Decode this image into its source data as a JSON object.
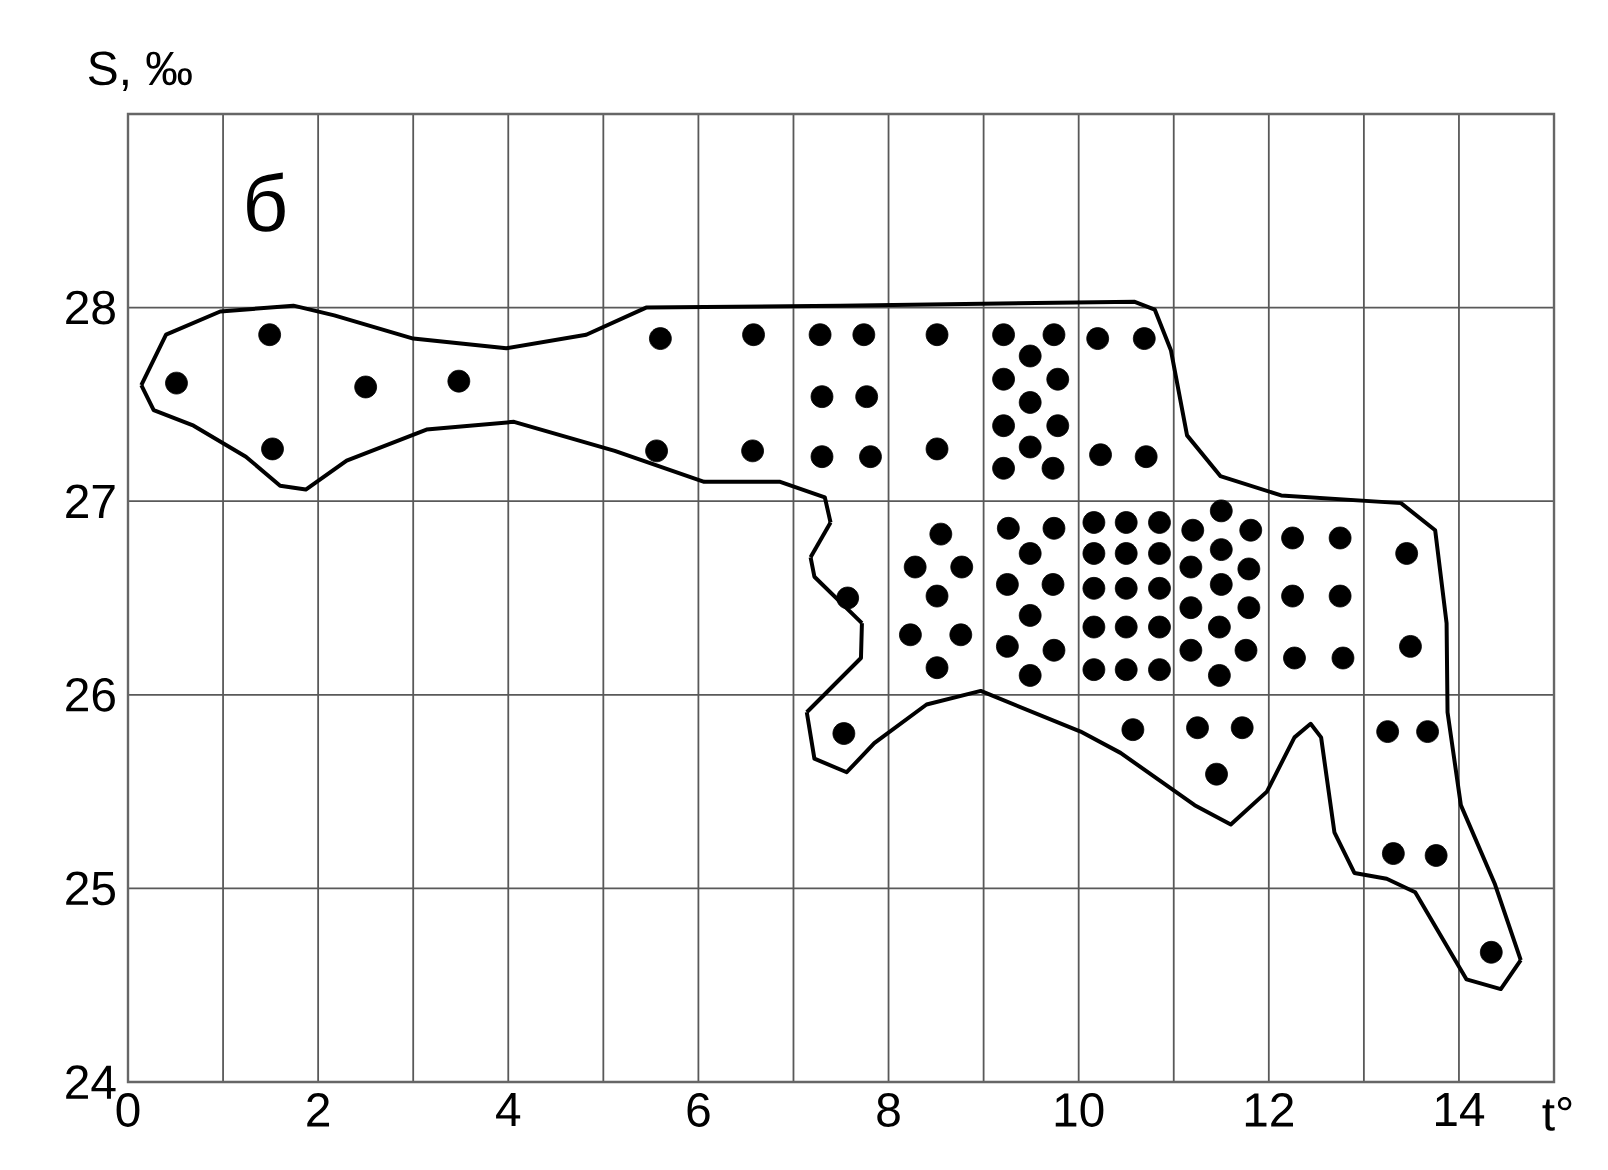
{
  "chart_data": {
    "type": "scatter",
    "xlabel": "t°",
    "ylabel": "S, ‰",
    "annotations": [
      "б"
    ],
    "xlim": [
      0,
      15
    ],
    "ylim": [
      24,
      29
    ],
    "xticks": [
      0,
      {
        "value": 1,
        "label": null
      },
      2,
      {
        "value": 3,
        "label": null
      },
      4,
      {
        "value": 5,
        "label": null
      },
      6,
      {
        "value": 7,
        "label": null
      },
      8,
      {
        "value": 9,
        "label": null
      },
      10,
      {
        "value": 11,
        "label": null
      },
      12,
      {
        "value": 13,
        "label": null
      },
      14,
      {
        "value": 15,
        "label": null
      }
    ],
    "yticks": [
      24,
      25,
      26,
      27,
      28,
      {
        "value": 29,
        "label": null
      }
    ],
    "grid": true,
    "series": [
      {
        "type": "line",
        "marker": "none",
        "color": "#000000",
        "x": [
          0.14,
          0.4,
          0.97,
          1.74,
          2.17,
          3.0,
          3.98,
          4.82,
          5.45,
          7.49,
          10.59,
          10.8,
          10.97,
          11.14,
          11.49,
          12.13,
          13.39,
          13.75,
          13.87,
          13.88,
          14.02,
          14.38,
          14.65
        ],
        "values": [
          27.6,
          27.86,
          27.98,
          28.01,
          27.96,
          27.84,
          27.79,
          27.86,
          28.0,
          28.01,
          28.03,
          27.99,
          27.78,
          27.34,
          27.13,
          27.03,
          26.99,
          26.85,
          26.37,
          25.91,
          25.43,
          25.02,
          24.63
        ]
      },
      {
        "type": "line",
        "marker": "none",
        "color": "#000000",
        "x": [
          14.65,
          14.44,
          14.08,
          13.54,
          13.24,
          12.9,
          12.69,
          12.55,
          12.44,
          12.27,
          11.98,
          11.6,
          11.22,
          10.44,
          10.02,
          8.97,
          8.4,
          7.85,
          7.56,
          7.22,
          7.14
        ],
        "values": [
          24.63,
          24.48,
          24.53,
          24.98,
          25.05,
          25.08,
          25.29,
          25.78,
          25.85,
          25.78,
          25.5,
          25.33,
          25.43,
          25.7,
          25.81,
          26.02,
          25.95,
          25.75,
          25.6,
          25.67,
          25.91
        ]
      },
      {
        "type": "line",
        "marker": "none",
        "color": "#000000",
        "x": [
          7.14,
          7.71,
          7.72
        ],
        "values": [
          25.91,
          26.19,
          26.37
        ]
      },
      {
        "type": "line",
        "marker": "none",
        "color": "#000000",
        "x": [
          7.72,
          7.22,
          7.18
        ],
        "values": [
          26.37,
          26.61,
          26.71
        ]
      },
      {
        "type": "line",
        "marker": "none",
        "color": "#000000",
        "x": [
          7.18,
          7.39
        ],
        "values": [
          26.71,
          26.89
        ]
      },
      {
        "type": "line",
        "marker": "none",
        "color": "#000000",
        "x": [
          7.39,
          7.33,
          6.86,
          6.06,
          5.12,
          4.06,
          3.14,
          2.3,
          1.87,
          1.6,
          1.24,
          0.69,
          0.27,
          0.14
        ],
        "values": [
          26.89,
          27.02,
          27.1,
          27.1,
          27.26,
          27.41,
          27.37,
          27.21,
          27.06,
          27.08,
          27.23,
          27.39,
          27.47,
          27.6
        ]
      },
      {
        "color": "#000000",
        "marker": "circle",
        "x": [
          0.51,
          1.49,
          1.52,
          2.5,
          3.48,
          5.6,
          5.56,
          6.58,
          6.57,
          7.28,
          7.74,
          8.51,
          7.3,
          7.77,
          7.3,
          7.81,
          8.51,
          9.21,
          9.74,
          9.49,
          9.21,
          9.78,
          9.49,
          9.21,
          9.78,
          9.49,
          9.21,
          9.73,
          10.2,
          10.69,
          10.23,
          10.71,
          7.57,
          7.53,
          8.55,
          8.28,
          8.77,
          8.51,
          8.23,
          8.76,
          8.51,
          9.26,
          9.74,
          9.49,
          9.25,
          9.73,
          9.49,
          9.25,
          9.74,
          9.49,
          10.16,
          10.5,
          10.85,
          10.16,
          10.5,
          10.85,
          10.16,
          10.5,
          10.85,
          10.16,
          10.5,
          10.85,
          10.16,
          10.5,
          10.85,
          11.5,
          11.2,
          11.81,
          11.5,
          11.18,
          11.79,
          11.5,
          11.18,
          11.79,
          11.48,
          11.18,
          11.76,
          11.48,
          10.57,
          11.25,
          11.72,
          11.45,
          12.25,
          12.75,
          12.25,
          12.75,
          12.27,
          12.78,
          13.45,
          13.49,
          13.25,
          13.67,
          13.31,
          13.76,
          14.34
        ],
        "values": [
          27.61,
          27.86,
          27.27,
          27.59,
          27.62,
          27.84,
          27.26,
          27.86,
          27.26,
          27.86,
          27.86,
          27.86,
          27.54,
          27.54,
          27.23,
          27.23,
          27.27,
          27.86,
          27.86,
          27.75,
          27.63,
          27.63,
          27.51,
          27.39,
          27.39,
          27.28,
          27.17,
          27.17,
          27.84,
          27.84,
          27.24,
          27.23,
          26.5,
          25.8,
          26.83,
          26.66,
          26.66,
          26.51,
          26.31,
          26.31,
          26.14,
          26.86,
          26.86,
          26.73,
          26.57,
          26.57,
          26.41,
          26.25,
          26.23,
          26.1,
          26.89,
          26.89,
          26.89,
          26.73,
          26.73,
          26.73,
          26.55,
          26.55,
          26.55,
          26.35,
          26.35,
          26.35,
          26.13,
          26.13,
          26.13,
          26.95,
          26.85,
          26.85,
          26.75,
          26.66,
          26.65,
          26.57,
          26.45,
          26.45,
          26.35,
          26.23,
          26.23,
          26.1,
          25.82,
          25.83,
          25.83,
          25.59,
          26.81,
          26.81,
          26.51,
          26.51,
          26.19,
          26.19,
          26.73,
          26.25,
          25.81,
          25.81,
          25.18,
          25.17,
          24.67
        ]
      }
    ]
  }
}
